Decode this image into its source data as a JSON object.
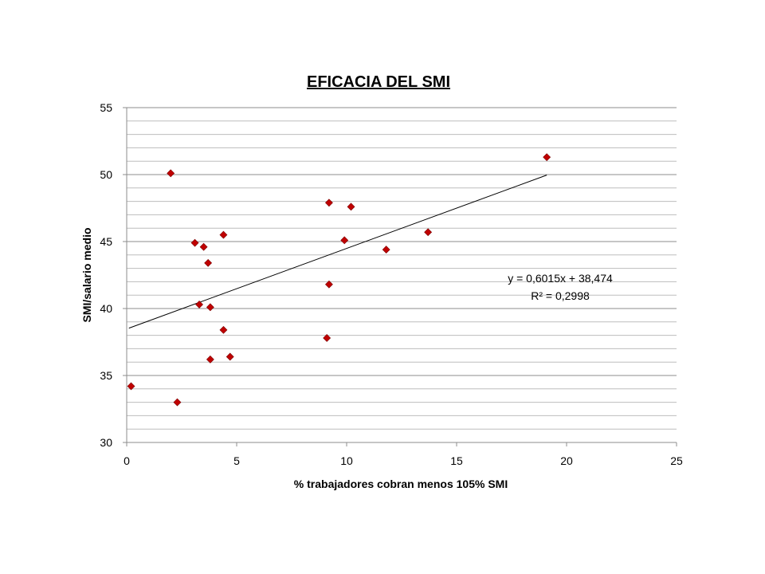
{
  "chart_data": {
    "type": "scatter",
    "title": "EFICACIA DEL SMI",
    "xlabel": "% trabajadores cobran menos 105% SMI",
    "ylabel": "SMI/salario medio",
    "xlim": [
      0,
      25
    ],
    "ylim": [
      30,
      55
    ],
    "x_ticks": [
      0,
      5,
      10,
      15,
      20,
      25
    ],
    "y_ticks": [
      30,
      35,
      40,
      45,
      50,
      55
    ],
    "minor_y_step": 1,
    "grid": true,
    "marker": "diamond",
    "marker_color": "#c00000",
    "points": [
      {
        "x": 0.2,
        "y": 34.2
      },
      {
        "x": 2.0,
        "y": 50.1
      },
      {
        "x": 2.3,
        "y": 33.0
      },
      {
        "x": 3.1,
        "y": 44.9
      },
      {
        "x": 3.3,
        "y": 40.3
      },
      {
        "x": 3.5,
        "y": 44.6
      },
      {
        "x": 3.7,
        "y": 43.4
      },
      {
        "x": 3.8,
        "y": 40.1
      },
      {
        "x": 3.8,
        "y": 36.2
      },
      {
        "x": 4.4,
        "y": 45.5
      },
      {
        "x": 4.4,
        "y": 38.4
      },
      {
        "x": 4.7,
        "y": 36.4
      },
      {
        "x": 9.1,
        "y": 37.8
      },
      {
        "x": 9.2,
        "y": 41.8
      },
      {
        "x": 9.2,
        "y": 47.9
      },
      {
        "x": 9.9,
        "y": 45.1
      },
      {
        "x": 10.2,
        "y": 47.6
      },
      {
        "x": 11.8,
        "y": 44.4
      },
      {
        "x": 13.7,
        "y": 45.7
      },
      {
        "x": 19.1,
        "y": 51.3
      }
    ],
    "trendline": {
      "slope": 0.6015,
      "intercept": 38.474,
      "x_range": [
        0.1,
        19.1
      ],
      "equation_label": "y = 0,6015x + 38,474",
      "r2_label": "R² = 0,2998"
    }
  }
}
